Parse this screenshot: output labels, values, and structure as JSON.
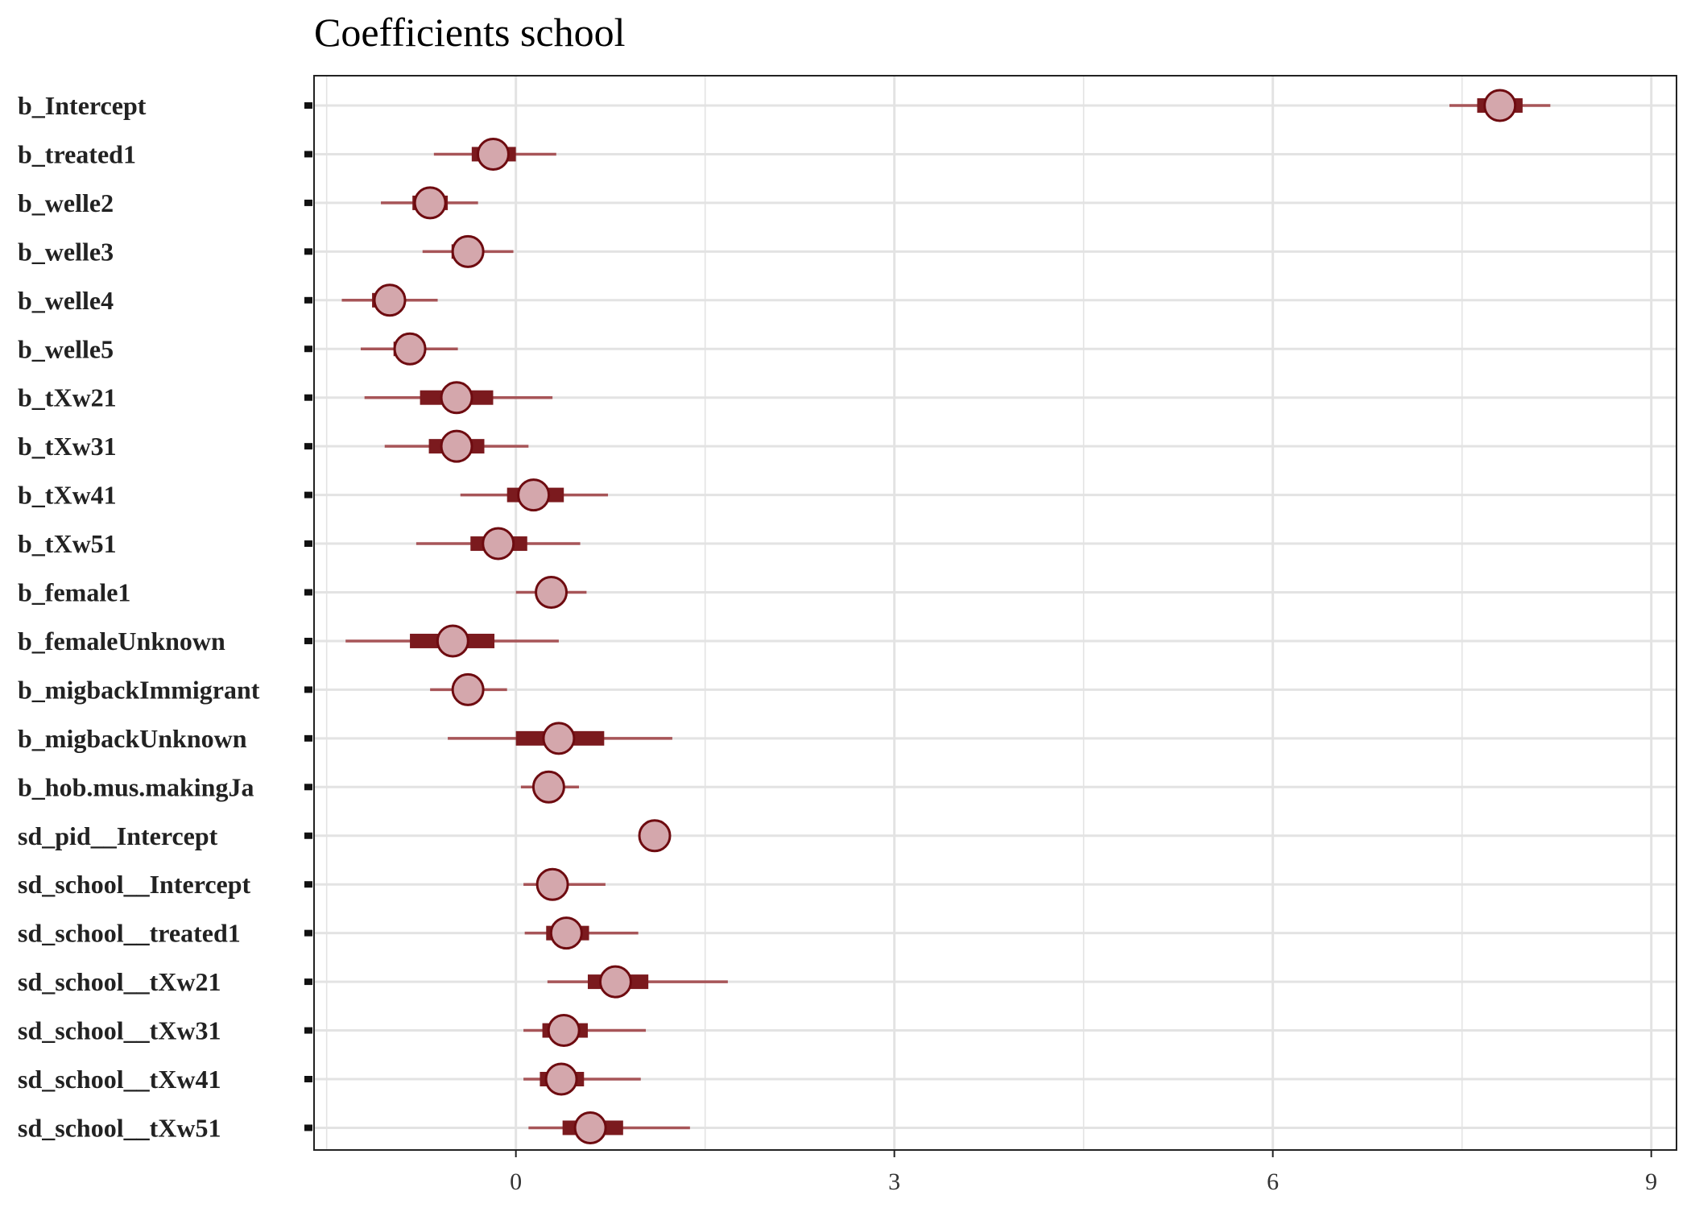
{
  "chart_data": {
    "type": "interval",
    "title": "Coefficients school",
    "xlabel": "",
    "ylabel": "",
    "xlim": [
      -1.6,
      9.2
    ],
    "xticks": [
      0,
      3,
      6,
      9
    ],
    "grid": true,
    "colors": {
      "point_fill": "#d4a7ac",
      "point_stroke": "#6e0b10",
      "inner_interval": "#7b1a1e",
      "outer_interval": "#a75558",
      "grid": "#e3e3e3",
      "border": "#222222"
    },
    "parameters": [
      {
        "name": "b_Intercept",
        "estimate": 7.8,
        "inner": [
          7.62,
          7.98
        ],
        "outer": [
          7.4,
          8.2
        ]
      },
      {
        "name": "b_treated1",
        "estimate": -0.18,
        "inner": [
          -0.35,
          0.0
        ],
        "outer": [
          -0.65,
          0.32
        ]
      },
      {
        "name": "b_welle2",
        "estimate": -0.68,
        "inner": [
          -0.82,
          -0.54
        ],
        "outer": [
          -1.07,
          -0.3
        ]
      },
      {
        "name": "b_welle3",
        "estimate": -0.38,
        "inner": [
          -0.51,
          -0.27
        ],
        "outer": [
          -0.74,
          -0.02
        ]
      },
      {
        "name": "b_welle4",
        "estimate": -1.0,
        "inner": [
          -1.14,
          -0.88
        ],
        "outer": [
          -1.38,
          -0.62
        ]
      },
      {
        "name": "b_welle5",
        "estimate": -0.84,
        "inner": [
          -0.97,
          -0.72
        ],
        "outer": [
          -1.23,
          -0.46
        ]
      },
      {
        "name": "b_tXw21",
        "estimate": -0.47,
        "inner": [
          -0.76,
          -0.18
        ],
        "outer": [
          -1.2,
          0.29
        ]
      },
      {
        "name": "b_tXw31",
        "estimate": -0.47,
        "inner": [
          -0.69,
          -0.25
        ],
        "outer": [
          -1.04,
          0.1
        ]
      },
      {
        "name": "b_tXw41",
        "estimate": 0.14,
        "inner": [
          -0.07,
          0.38
        ],
        "outer": [
          -0.44,
          0.73
        ]
      },
      {
        "name": "b_tXw51",
        "estimate": -0.14,
        "inner": [
          -0.36,
          0.09
        ],
        "outer": [
          -0.79,
          0.51
        ]
      },
      {
        "name": "b_female1",
        "estimate": 0.28,
        "inner": [
          0.2,
          0.36
        ],
        "outer": [
          0.0,
          0.56
        ]
      },
      {
        "name": "b_femaleUnknown",
        "estimate": -0.5,
        "inner": [
          -0.84,
          -0.17
        ],
        "outer": [
          -1.35,
          0.34
        ]
      },
      {
        "name": "b_migbackImmigrant",
        "estimate": -0.38,
        "inner": [
          -0.48,
          -0.29
        ],
        "outer": [
          -0.68,
          -0.07
        ]
      },
      {
        "name": "b_migbackUnknown",
        "estimate": 0.34,
        "inner": [
          0.0,
          0.7
        ],
        "outer": [
          -0.54,
          1.24
        ]
      },
      {
        "name": "b_hob.mus.makingJa",
        "estimate": 0.26,
        "inner": [
          0.2,
          0.33
        ],
        "outer": [
          0.04,
          0.5
        ]
      },
      {
        "name": "sd_pid__Intercept",
        "estimate": 1.1,
        "inner": [
          1.06,
          1.14
        ],
        "outer": [
          1.04,
          1.17
        ]
      },
      {
        "name": "sd_school__Intercept",
        "estimate": 0.29,
        "inner": [
          0.2,
          0.38
        ],
        "outer": [
          0.06,
          0.71
        ]
      },
      {
        "name": "sd_school__treated1",
        "estimate": 0.4,
        "inner": [
          0.24,
          0.58
        ],
        "outer": [
          0.07,
          0.97
        ]
      },
      {
        "name": "sd_school__tXw21",
        "estimate": 0.79,
        "inner": [
          0.57,
          1.05
        ],
        "outer": [
          0.25,
          1.68
        ]
      },
      {
        "name": "sd_school__tXw31",
        "estimate": 0.38,
        "inner": [
          0.21,
          0.57
        ],
        "outer": [
          0.06,
          1.03
        ]
      },
      {
        "name": "sd_school__tXw41",
        "estimate": 0.36,
        "inner": [
          0.19,
          0.54
        ],
        "outer": [
          0.06,
          0.99
        ]
      },
      {
        "name": "sd_school__tXw51",
        "estimate": 0.59,
        "inner": [
          0.37,
          0.85
        ],
        "outer": [
          0.1,
          1.38
        ]
      }
    ]
  }
}
